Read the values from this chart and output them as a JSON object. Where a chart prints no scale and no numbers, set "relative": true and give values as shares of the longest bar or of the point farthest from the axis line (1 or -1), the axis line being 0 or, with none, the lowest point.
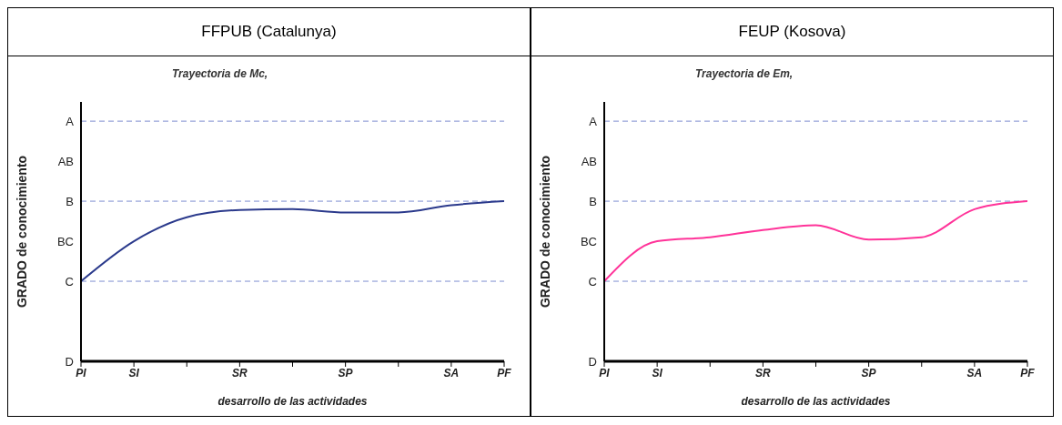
{
  "chart_data": [
    {
      "type": "line",
      "title": "FFPUB (Catalunya)",
      "subtitle": "Trayectoria de Mc,",
      "xlabel": "desarrollo de las actividades",
      "ylabel": "GRADO de conocimiento",
      "marker": "none",
      "legend": false,
      "relative": true,
      "categories": [
        "PI",
        "SI",
        null,
        "SR",
        null,
        "SP",
        null,
        "SA",
        "PF"
      ],
      "annotations": [
        "A",
        "AB",
        "B",
        "BC",
        "C",
        "D"
      ],
      "ref_lines": [
        {
          "axis": "y",
          "value": 0.5,
          "color": "#7f8fd0",
          "line_style": "dashed"
        },
        {
          "axis": "y",
          "value": 1,
          "color": "#7f8fd0",
          "line_style": "dashed"
        },
        {
          "axis": "y",
          "value": 1.5,
          "color": "#7f8fd0",
          "line_style": "dashed"
        }
      ],
      "series": [
        {
          "color": "#2b3a8c",
          "values": [
            0.5,
            0.75,
            0.9,
            0.945,
            0.95,
            0.93,
            0.93,
            0.975,
            1
          ]
        }
      ]
    },
    {
      "type": "line",
      "title": "FEUP (Kosova)",
      "subtitle": "Trayectoria de Em,",
      "xlabel": "desarrollo de las actividades",
      "ylabel": "GRADO de conocimiento",
      "marker": "none",
      "legend": false,
      "relative": true,
      "categories": [
        "PI",
        "SI",
        null,
        "SR",
        null,
        "SP",
        null,
        "SA",
        "PF"
      ],
      "annotations": [
        "A",
        "AB",
        "B",
        "BC",
        "C",
        "D"
      ],
      "ref_lines": [
        {
          "axis": "y",
          "value": 0.5,
          "color": "#7f8fd0",
          "line_style": "dashed"
        },
        {
          "axis": "y",
          "value": 1,
          "color": "#7f8fd0",
          "line_style": "dashed"
        },
        {
          "axis": "y",
          "value": 1.5,
          "color": "#7f8fd0",
          "line_style": "dashed"
        }
      ],
      "series": [
        {
          "color": "#ff3399",
          "values": [
            0.5,
            0.75,
            0.775,
            0.82,
            0.85,
            0.76,
            0.775,
            0.95,
            1
          ]
        }
      ]
    }
  ]
}
